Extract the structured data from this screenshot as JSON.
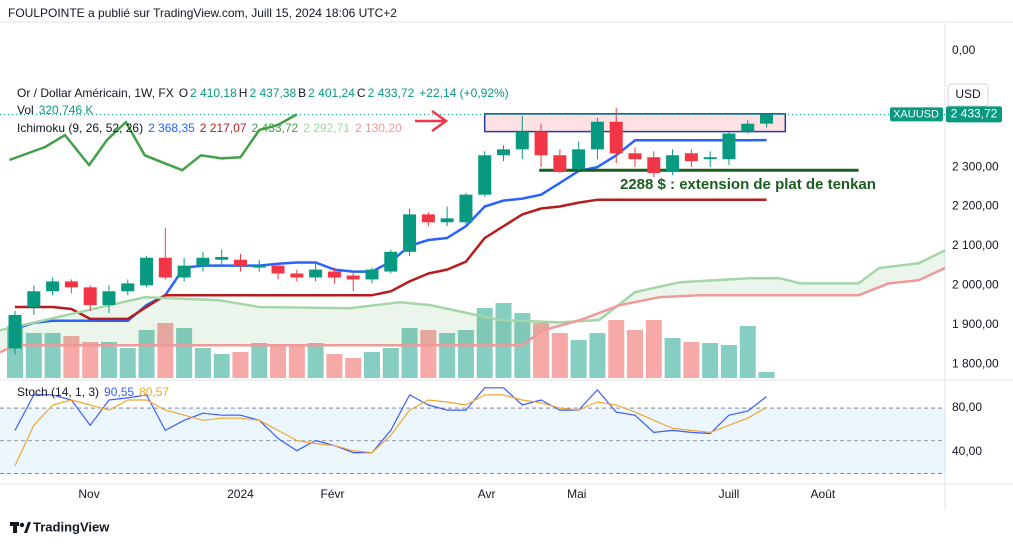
{
  "header": "FOULPOINTE a publié sur TradingView.com, Juill 15, 2024 18:06 UTC+2",
  "footer": "TradingView",
  "chart_data": [
    {
      "type": "candlestick",
      "title": "Or / Dollar Américain, 1W, FX",
      "ohlc_keys": [
        "O",
        "H",
        "B",
        "C"
      ],
      "last_labels": [
        "2 410,18",
        "2 437,38",
        "2 401,24",
        "2 433,72"
      ],
      "change": "+22,14 (+0,92%)",
      "currency": "USD",
      "symbol": "XAUUSD",
      "top_scale_label": "0,00",
      "x": [
        0,
        1,
        2,
        3,
        4,
        5,
        6,
        7,
        8,
        9,
        10,
        11,
        12,
        13,
        14,
        15,
        16,
        17,
        18,
        19,
        20,
        21,
        22,
        23,
        24,
        25,
        26,
        27,
        28,
        29,
        30,
        31,
        32,
        33,
        34,
        35,
        36,
        37,
        38,
        39,
        40
      ],
      "open": [
        1840,
        1945,
        1985,
        2010,
        1995,
        1950,
        1985,
        2000,
        2070,
        2020,
        2050,
        2065,
        2065,
        2045,
        2050,
        2030,
        2020,
        2035,
        2025,
        2015,
        2035,
        2085,
        2180,
        2160,
        2160,
        2230,
        2330,
        2345,
        2390,
        2330,
        2295,
        2345,
        2415,
        2335,
        2325,
        2290,
        2335,
        2320,
        2320,
        2390,
        2410.18
      ],
      "high": [
        1935,
        2000,
        2020,
        2015,
        2000,
        2000,
        2015,
        2075,
        2145,
        2070,
        2085,
        2090,
        2080,
        2065,
        2055,
        2040,
        2055,
        2045,
        2035,
        2045,
        2090,
        2195,
        2185,
        2200,
        2235,
        2340,
        2355,
        2430,
        2410,
        2345,
        2365,
        2425,
        2450,
        2350,
        2340,
        2345,
        2345,
        2340,
        2390,
        2420,
        2437.38
      ],
      "low": [
        1825,
        1925,
        1975,
        1980,
        1935,
        1930,
        1975,
        1995,
        2015,
        2010,
        2035,
        2050,
        2035,
        2035,
        2015,
        2010,
        2010,
        2005,
        1985,
        2005,
        2030,
        2075,
        2150,
        2150,
        2155,
        2225,
        2315,
        2320,
        2300,
        2285,
        2290,
        2320,
        2310,
        2300,
        2275,
        2280,
        2300,
        2300,
        2305,
        2385,
        2401.24
      ],
      "close": [
        1925,
        1985,
        2010,
        1995,
        1950,
        1985,
        2005,
        2070,
        2020,
        2050,
        2070,
        2072,
        2050,
        2050,
        2030,
        2020,
        2040,
        2020,
        2015,
        2040,
        2085,
        2180,
        2160,
        2170,
        2230,
        2330,
        2345,
        2390,
        2330,
        2290,
        2345,
        2415,
        2335,
        2320,
        2285,
        2330,
        2315,
        2325,
        2385,
        2410,
        2433.72
      ],
      "up_color": "#089981",
      "down_color": "#f23645",
      "xlim": [
        -0.8,
        49.5
      ],
      "ylim": [
        1765,
        2668
      ],
      "yticks": [
        {
          "value": 1800,
          "label": "1 800,00"
        },
        {
          "value": 1900,
          "label": "1 900,00"
        },
        {
          "value": 2000,
          "label": "2 000,00"
        },
        {
          "value": 2100,
          "label": "2 100,00"
        },
        {
          "value": 2200,
          "label": "2 200,00"
        },
        {
          "value": 2300,
          "label": "2 300,00"
        }
      ],
      "volume": {
        "name": "Vol",
        "value_label": "320,746 K",
        "values": [
          2780,
          2405,
          2405,
          2245,
          1924,
          1924,
          1604,
          2566,
          2940,
          2673,
          1604,
          1283,
          1390,
          1871,
          1817,
          1710,
          1871,
          1283,
          1069,
          1390,
          1604,
          2673,
          2566,
          2405,
          2566,
          3742,
          4009,
          3474,
          2940,
          2405,
          2031,
          2405,
          3100,
          2566,
          3100,
          2138,
          1924,
          1871,
          1764,
          2780,
          320.746
        ],
        "up_color": "#86cdc2",
        "down_color": "#f7a9a7"
      },
      "ichimoku": {
        "name": "Ichimoku (9, 26, 52, 26)",
        "cloud_color": "rgba(67,160,71,0.10)",
        "series": [
          {
            "color": "#2962ff",
            "legend_label": "2 368,35",
            "values": [
              1890,
              1905,
              1910,
              1910,
              1910,
              1910,
              1910,
              1950,
              1975,
              2045,
              2050,
              2050,
              2050,
              2050,
              2055,
              2058,
              2058,
              2040,
              2035,
              2035,
              2060,
              2100,
              2115,
              2120,
              2150,
              2200,
              2215,
              2220,
              2230,
              2260,
              2290,
              2300,
              2330,
              2368,
              2368,
              2368,
              2368,
              2368,
              2368,
              2368,
              2368.35
            ]
          },
          {
            "color": "#b71c1c",
            "legend_label": "2 217,07",
            "values": [
              1945,
              1945,
              1945,
              1940,
              1915,
              1915,
              1915,
              1945,
              1975,
              1975,
              1975,
              1975,
              1975,
              1975,
              1975,
              1975,
              1975,
              1975,
              1975,
              1975,
              1985,
              2010,
              2030,
              2040,
              2060,
              2120,
              2150,
              2180,
              2195,
              2200,
              2210,
              2217,
              2217,
              2217,
              2217,
              2217,
              2217,
              2217,
              2217,
              2217,
              2217.07
            ]
          },
          {
            "color": "#43a047",
            "legend_label": "2 433,72",
            "x": [
              -0.3,
              1.6,
              2.66,
              3.94,
              4.9,
              5.9,
              6.9,
              8.9,
              9.9,
              11,
              12,
              13,
              14,
              15
            ],
            "values": [
              2318,
              2351,
              2381,
              2305,
              2369,
              2414,
              2330,
              2292,
              2330,
              2322,
              2325,
              2394,
              2407,
              2433.72
            ]
          },
          {
            "color": "#a5d6a7",
            "legend_label": "2 292,71",
            "x": [
              -0.8,
              6.9,
              10.9,
              13,
              17.8,
              20.5,
              22.1,
              25.8,
              29,
              31.1,
              33,
              35.4,
              39.1,
              40.7,
              41.8,
              44.9,
              46,
              48.1,
              49.5
            ],
            "values": [
              1886,
              1970,
              1962,
              1945,
              1942,
              1957,
              1950,
              1912,
              1906,
              1912,
              1983,
              2008,
              2018,
              2018,
              2005,
              2005,
              2044,
              2056,
              2089
            ]
          },
          {
            "color": "#ef9a9a",
            "legend_label": "2 130,20",
            "x": [
              -0.8,
              0,
              27,
              28.1,
              30.1,
              32.2,
              34.3,
              36.4,
              44.9,
              46.5,
              48.1,
              49.5
            ],
            "values": [
              1830,
              1848,
              1848,
              1886,
              1912,
              1950,
              1970,
              1975,
              1975,
              2005,
              2013,
              2044
            ]
          }
        ]
      },
      "annotations": {
        "box": {
          "x": [
            25,
            41
          ],
          "y": [
            2390,
            2435
          ],
          "color": "#1e40af",
          "fill": "rgba(242,54,69,0.15)"
        },
        "level": {
          "x": [
            27.9,
            44.9
          ],
          "value": 2292,
          "color": "#1b5e20"
        },
        "text": "2288 $ : extension de plat de tenkan"
      }
    },
    {
      "type": "line",
      "title": "Stoch (14, 1, 3)",
      "x": [
        0,
        1,
        2,
        3,
        4,
        5,
        6,
        7,
        8,
        9,
        10,
        11,
        12,
        13,
        14,
        15,
        16,
        17,
        18,
        19,
        20,
        21,
        22,
        23,
        24,
        25,
        26,
        27,
        28,
        29,
        30,
        31,
        32,
        33,
        34,
        35,
        36,
        37,
        38,
        39,
        40
      ],
      "series": [
        {
          "color": "#3d5afe",
          "value_label": "90,55",
          "values": [
            59.5,
            92.1,
            92.1,
            87.4,
            64.2,
            87.4,
            89.3,
            92.1,
            59.5,
            68.8,
            75.3,
            73.5,
            73.5,
            68.8,
            52.1,
            40.9,
            50.2,
            45.6,
            39.1,
            39.1,
            59.5,
            92.1,
            82.8,
            78.1,
            78.1,
            98.6,
            98.6,
            82.8,
            87.4,
            78.1,
            78.1,
            96.7,
            76.3,
            73.5,
            57.7,
            59.5,
            57.7,
            56.7,
            73.5,
            77.2,
            90.55
          ]
        },
        {
          "color": "#f0a830",
          "value_label": "80,57",
          "values": [
            27,
            64.2,
            82.8,
            87.4,
            82.8,
            78.1,
            87.4,
            87.4,
            78.1,
            73.5,
            68.8,
            70.7,
            70.7,
            68.8,
            59.5,
            50.2,
            47.4,
            45.6,
            40.9,
            39.1,
            54.9,
            78.1,
            87.4,
            85.6,
            82.8,
            92.1,
            92.1,
            87.4,
            84.7,
            80,
            78.1,
            85.6,
            82.8,
            76.3,
            68.8,
            61.4,
            59.5,
            57.7,
            64.2,
            70.7,
            80.57
          ]
        }
      ],
      "band": [
        20,
        80
      ],
      "band_color": "rgba(33,150,243,0.09)",
      "hlines": [
        20,
        50,
        80
      ],
      "xlim": [
        -0.8,
        49.5
      ],
      "ylim": [
        14,
        103
      ],
      "yticks": [
        {
          "value": 40,
          "label": "40,00"
        },
        {
          "value": 80,
          "label": "80,00"
        }
      ],
      "xticks": [
        {
          "value": 3.94,
          "label": "Nov"
        },
        {
          "value": 12,
          "label": "2024"
        },
        {
          "value": 16.9,
          "label": "Févr"
        },
        {
          "value": 25.1,
          "label": "Avr"
        },
        {
          "value": 29.9,
          "label": "Mai"
        },
        {
          "value": 38,
          "label": "Juill"
        },
        {
          "value": 43,
          "label": "Août"
        }
      ]
    }
  ]
}
